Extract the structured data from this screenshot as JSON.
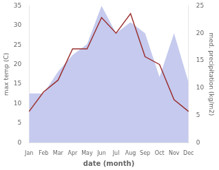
{
  "chart_data": {
    "type": "line",
    "categories": [
      "Jan",
      "Feb",
      "Mar",
      "Apr",
      "May",
      "Jun",
      "Jul",
      "Aug",
      "Sep",
      "Oct",
      "Nov",
      "Dec"
    ],
    "xlabel": "date (month)",
    "ylabel": "max temp (C)",
    "y2label": "med. precipitation (kg/m2)",
    "series": [
      {
        "type": "area",
        "axis": "y2",
        "color": "#c5caee",
        "values": [
          9,
          9,
          13,
          16,
          18,
          25,
          20,
          22,
          20,
          12,
          20,
          11
        ]
      },
      {
        "type": "line",
        "color": "#9b3030",
        "values": [
          8,
          13,
          16,
          24,
          24,
          32,
          28,
          33,
          22,
          20,
          11,
          8
        ]
      }
    ],
    "ylim": [
      0,
      35
    ],
    "yticks": [
      0,
      5,
      10,
      15,
      20,
      25,
      30,
      35
    ],
    "y2lim": [
      0,
      25
    ],
    "y2ticks": [
      0,
      5,
      10,
      15,
      20,
      25
    ],
    "grid": false
  }
}
